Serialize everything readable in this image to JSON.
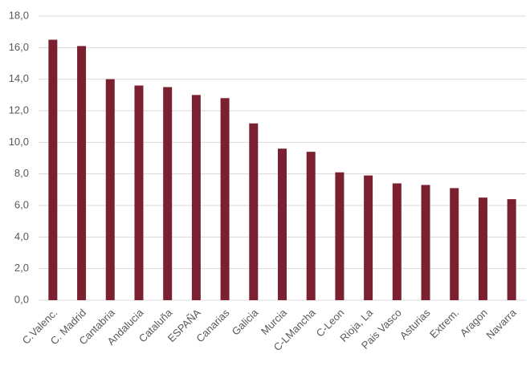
{
  "chart_data": {
    "type": "bar",
    "categories": [
      "C.Valenc.",
      "C. Madrid",
      "Cantabria",
      "Andalucia",
      "Cataluña",
      "ESPAÑA",
      "Canarias",
      "Galicia",
      "Murcia",
      "C-LMancha",
      "C-Leon",
      "Rioja, La",
      "Pais Vasco",
      "Asturias",
      "Extrem.",
      "Aragon",
      "Navarra"
    ],
    "values": [
      16.5,
      16.1,
      14.0,
      13.6,
      13.5,
      13.0,
      12.8,
      11.2,
      9.6,
      9.4,
      8.1,
      7.9,
      7.4,
      7.3,
      7.1,
      6.5,
      6.4
    ],
    "color": "#7b2030",
    "ylim": [
      0,
      18
    ],
    "yticks": [
      {
        "value": 0,
        "label": "0,0"
      },
      {
        "value": 2,
        "label": "2,0"
      },
      {
        "value": 4,
        "label": "4,0"
      },
      {
        "value": 6,
        "label": "6,0"
      },
      {
        "value": 8,
        "label": "8,0"
      },
      {
        "value": 10,
        "label": "10,0"
      },
      {
        "value": 12,
        "label": "12,0"
      },
      {
        "value": 14,
        "label": "14,0"
      },
      {
        "value": 16,
        "label": "16,0"
      },
      {
        "value": 18,
        "label": "18,0"
      }
    ],
    "grid": true
  }
}
